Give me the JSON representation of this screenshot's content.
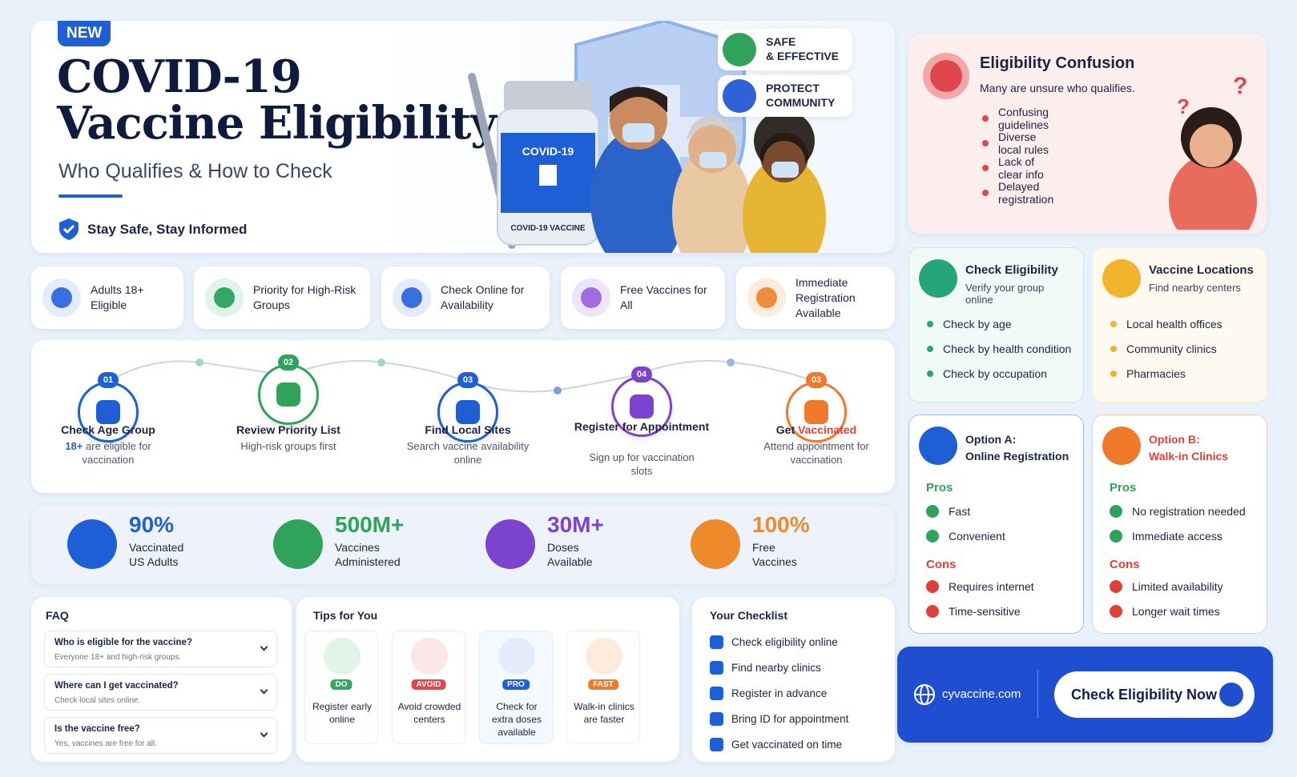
{
  "header": {
    "badge": "NEW",
    "title_line1": "COVID-19",
    "title_line2": "Vaccine Eligibility",
    "subtitle": "Who Qualifies & How to Check",
    "tagline": "Stay Safe, Stay Informed",
    "vial_label": "COVID-19",
    "vial_sub": "COVID-19 VACCINE"
  },
  "hero_badges": [
    {
      "line1": "SAFE",
      "line2": "& EFFECTIVE"
    },
    {
      "line1": "PROTECT",
      "line2": "COMMUNITY"
    }
  ],
  "features": [
    "Adults 18+ Eligible",
    "Priority for High-Risk Groups",
    "Check Online for Availability",
    "Free Vaccines for All",
    "Immediate Registration Available"
  ],
  "steps": [
    {
      "number": "01",
      "title": "Check Age Group",
      "desc_highlight": "18+",
      "desc": "are eligible for vaccination"
    },
    {
      "number": "02",
      "title": "Review Priority List",
      "desc": "High-risk groups first"
    },
    {
      "number": "03",
      "title": "Find Local Sites",
      "desc": "Search vaccine availability online"
    },
    {
      "number": "04",
      "title": "Register for Appointment",
      "desc": "Sign up for vaccination slots"
    },
    {
      "number": "03",
      "title_plain": "Get",
      "title": "Vaccinated",
      "desc": "Attend appointment for vaccination"
    }
  ],
  "stats": [
    {
      "value": "90%",
      "label_line1": "Vaccinated",
      "label_line2": "US Adults"
    },
    {
      "value": "500M+",
      "label_line1": "Vaccines",
      "label_line2": "Administered"
    },
    {
      "value": "30M+",
      "label_line1": "Doses",
      "label_line2": "Available"
    },
    {
      "value": "100%",
      "label_line1": "Free",
      "label_line2": "Vaccines"
    }
  ],
  "faq": {
    "title": "FAQ",
    "items": [
      {
        "q": "Who is eligible for the vaccine?",
        "a": "Everyone 18+ and high-risk groups."
      },
      {
        "q": "Where can I get vaccinated?",
        "a": "Check local sites online."
      },
      {
        "q": "Is the vaccine free?",
        "a": "Yes, vaccines are free for all."
      }
    ]
  },
  "tips": {
    "title": "Tips for You",
    "items": [
      {
        "tag": "DO",
        "text": "Register early online"
      },
      {
        "tag": "AVOID",
        "text": "Avoid crowded centers"
      },
      {
        "tag": "PRO",
        "text": "Check for extra doses available"
      },
      {
        "tag": "FAST",
        "text": "Walk-in clinics are faster"
      }
    ]
  },
  "checklist": {
    "title": "Your Checklist",
    "items": [
      "Check eligibility online",
      "Find nearby clinics",
      "Register in advance",
      "Bring ID for appointment",
      "Get vaccinated on time"
    ]
  },
  "confusion": {
    "title": "Eligibility Confusion",
    "subtitle": "Many are unsure who qualifies.",
    "items": [
      "Confusing guidelines",
      "Diverse local rules",
      "Lack of clear info",
      "Delayed registration"
    ]
  },
  "check_eligibility": {
    "title": "Check Eligibility",
    "subtitle": "Verify your group online",
    "items": [
      "Check by age",
      "Check by health condition",
      "Check by occupation"
    ]
  },
  "locations": {
    "title": "Vaccine Locations",
    "subtitle": "Find nearby centers",
    "items": [
      "Local health offices",
      "Community clinics",
      "Pharmacies"
    ]
  },
  "option_a": {
    "title": "Option A:",
    "subtitle": "Online Registration",
    "pros_label": "Pros",
    "pros": [
      "Fast",
      "Convenient"
    ],
    "cons_label": "Cons",
    "cons": [
      "Requires internet",
      "Time-sensitive"
    ]
  },
  "option_b": {
    "title": "Option B:",
    "subtitle": "Walk-in Clinics",
    "pros_label": "Pros",
    "pros": [
      "No registration needed",
      "Immediate access"
    ],
    "cons_label": "Cons",
    "cons": [
      "Limited availability",
      "Longer wait times"
    ]
  },
  "cta": {
    "site": "cyvaccine.com",
    "button": "Check Eligibility Now"
  }
}
